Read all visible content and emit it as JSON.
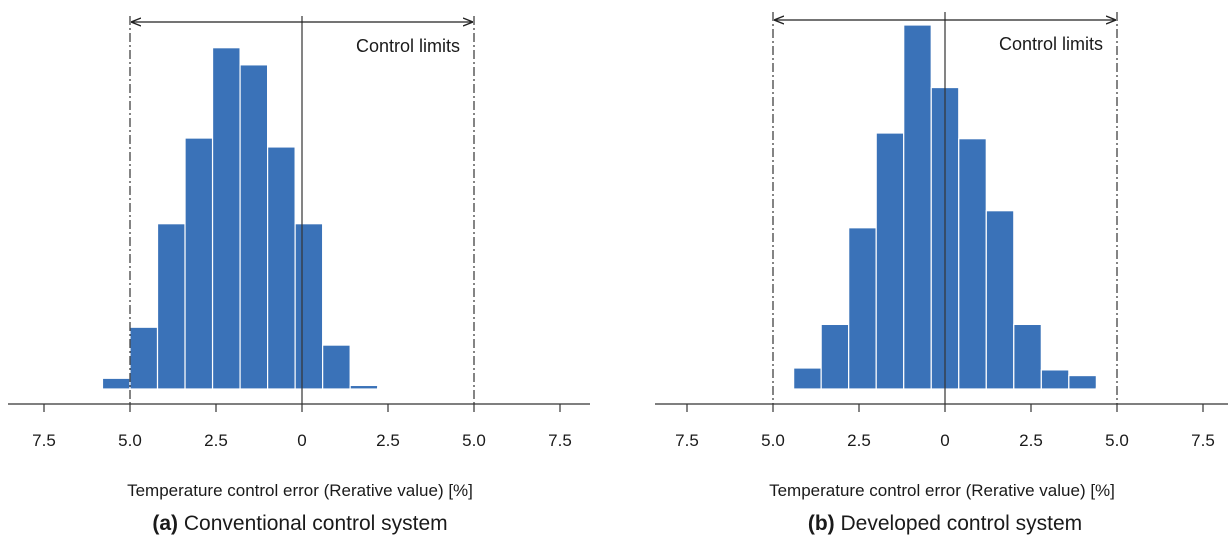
{
  "chart_data": [
    {
      "type": "bar",
      "panel_label": "(a)",
      "caption": "Conventional control system",
      "xlabel": "Temperature control error (Rerative value) [%]",
      "tick_labels": [
        "7.5",
        "5.0",
        "2.5",
        "0",
        "2.5",
        "5.0",
        "7.5"
      ],
      "annotation": "Control limits",
      "control_limits": [
        -5.0,
        5.0
      ],
      "bin_width": 0.8,
      "bin_starts": [
        -8.2,
        -7.4,
        -6.6,
        -5.8,
        -5.0,
        -4.2,
        -3.4,
        -2.6,
        -1.8,
        -1.0,
        -0.2,
        0.6,
        1.4,
        2.2,
        3.0,
        3.8
      ],
      "values": [
        0.4,
        0.6,
        2.8,
        7.2,
        21.5,
        50.5,
        74.5,
        99.8,
        95.0,
        72.0,
        50.5,
        16.5,
        5.2,
        3.2,
        2.2,
        0.4
      ],
      "bar_color": "#3a72b8"
    },
    {
      "type": "bar",
      "panel_label": "(b)",
      "caption": "Developed control system",
      "xlabel": "Temperature control error (Rerative value) [%]",
      "tick_labels": [
        "7.5",
        "5.0",
        "2.5",
        "0",
        "2.5",
        "5.0",
        "7.5"
      ],
      "annotation": "Control limits",
      "control_limits": [
        -5.0,
        5.0
      ],
      "bin_width": 0.8,
      "bin_starts": [
        -8.4,
        -7.6,
        -6.8,
        -6.0,
        -5.2,
        -4.4,
        -3.6,
        -2.8,
        -2.0,
        -1.2,
        -0.4,
        0.4,
        1.2,
        2.0,
        2.8,
        3.6,
        4.4,
        5.2
      ],
      "values": [
        0.2,
        0.0,
        1.0,
        0.0,
        3.2,
        9.5,
        21.0,
        46.5,
        71.5,
        100.0,
        83.5,
        70.0,
        51.0,
        21.0,
        9.0,
        7.5,
        1.5,
        0.0
      ],
      "bar_color": "#3a72b8"
    }
  ]
}
